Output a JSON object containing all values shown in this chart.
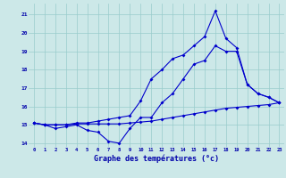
{
  "xlabel": "Graphe des températures (°c)",
  "background_color": "#cce8e8",
  "grid_color": "#99cccc",
  "line_color": "#0000cc",
  "hours": [
    0,
    1,
    2,
    3,
    4,
    5,
    6,
    7,
    8,
    9,
    10,
    11,
    12,
    13,
    14,
    15,
    16,
    17,
    18,
    19,
    20,
    21,
    22,
    23
  ],
  "series1": [
    15.1,
    15.0,
    14.8,
    14.9,
    15.0,
    14.7,
    14.6,
    14.1,
    14.0,
    14.8,
    15.4,
    15.4,
    16.2,
    16.7,
    17.5,
    18.3,
    18.5,
    19.3,
    19.0,
    19.0,
    17.2,
    16.7,
    16.5,
    16.2
  ],
  "series2": [
    15.1,
    15.0,
    15.0,
    15.0,
    15.05,
    15.05,
    15.05,
    15.05,
    15.05,
    15.1,
    15.15,
    15.2,
    15.3,
    15.4,
    15.5,
    15.6,
    15.7,
    15.8,
    15.9,
    15.95,
    16.0,
    16.05,
    16.1,
    16.2
  ],
  "series3": [
    15.1,
    15.0,
    15.0,
    15.0,
    15.1,
    15.1,
    15.2,
    15.3,
    15.4,
    15.5,
    16.3,
    17.5,
    18.0,
    18.6,
    18.8,
    19.3,
    19.8,
    21.2,
    19.7,
    19.2,
    17.2,
    16.7,
    16.5,
    16.2
  ],
  "ylim": [
    13.8,
    21.6
  ],
  "xlim": [
    -0.5,
    23.5
  ],
  "yticks": [
    14,
    15,
    16,
    17,
    18,
    19,
    20,
    21
  ],
  "yticklabels": [
    "14",
    "15",
    "16",
    "17",
    "18",
    "19",
    "20",
    "21"
  ]
}
